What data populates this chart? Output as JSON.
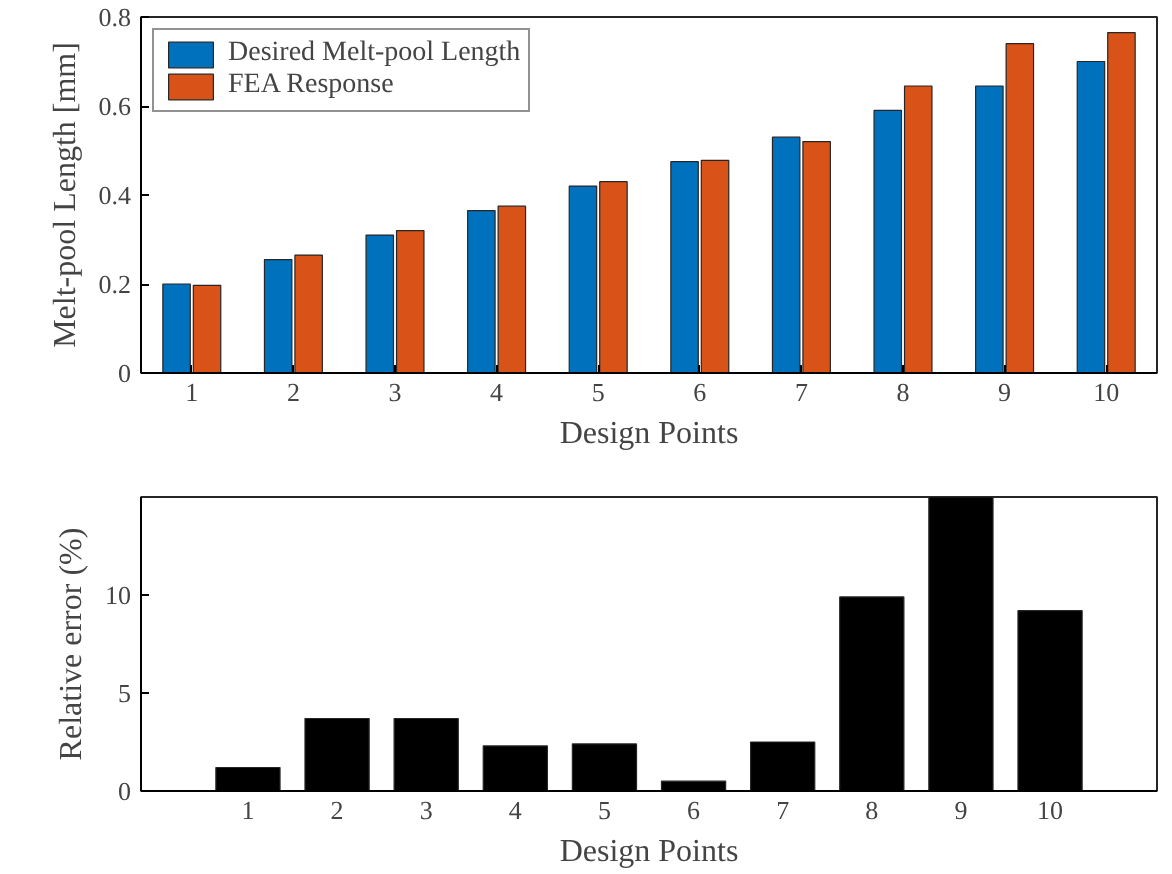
{
  "chart_data": [
    {
      "type": "bar",
      "categories": [
        "1",
        "2",
        "3",
        "4",
        "5",
        "6",
        "7",
        "8",
        "9",
        "10"
      ],
      "xlabel": "Design Points",
      "ylabel": "Melt-pool Length [mm]",
      "ylim": [
        0,
        0.8
      ],
      "yticks": [
        0,
        0.2,
        0.4,
        0.6,
        0.8
      ],
      "legend": "top left",
      "grid": false,
      "series": [
        {
          "name": "Desired Melt-pool Length",
          "color": "#0072bd",
          "values": [
            0.2,
            0.255,
            0.31,
            0.365,
            0.42,
            0.475,
            0.53,
            0.59,
            0.645,
            0.7
          ]
        },
        {
          "name": "FEA Response",
          "color": "#d95319",
          "values": [
            0.197,
            0.265,
            0.32,
            0.375,
            0.43,
            0.478,
            0.52,
            0.645,
            0.74,
            0.765
          ]
        }
      ]
    },
    {
      "type": "bar",
      "x": [
        1,
        2,
        3,
        4,
        5,
        6,
        7,
        8,
        9,
        10
      ],
      "xlim": [
        -0.2,
        11.2
      ],
      "xticks": [
        1,
        2,
        3,
        4,
        5,
        6,
        7,
        8,
        9,
        10
      ],
      "xlabel": "Design Points",
      "ylabel": "Relative error (%)",
      "ylim": [
        0,
        15
      ],
      "yticks": [
        0,
        5,
        10
      ],
      "grid": false,
      "series": [
        {
          "color": "#000000",
          "values": [
            1.2,
            3.7,
            3.7,
            2.3,
            2.4,
            0.5,
            2.5,
            9.9,
            15,
            9.2
          ]
        }
      ]
    }
  ]
}
